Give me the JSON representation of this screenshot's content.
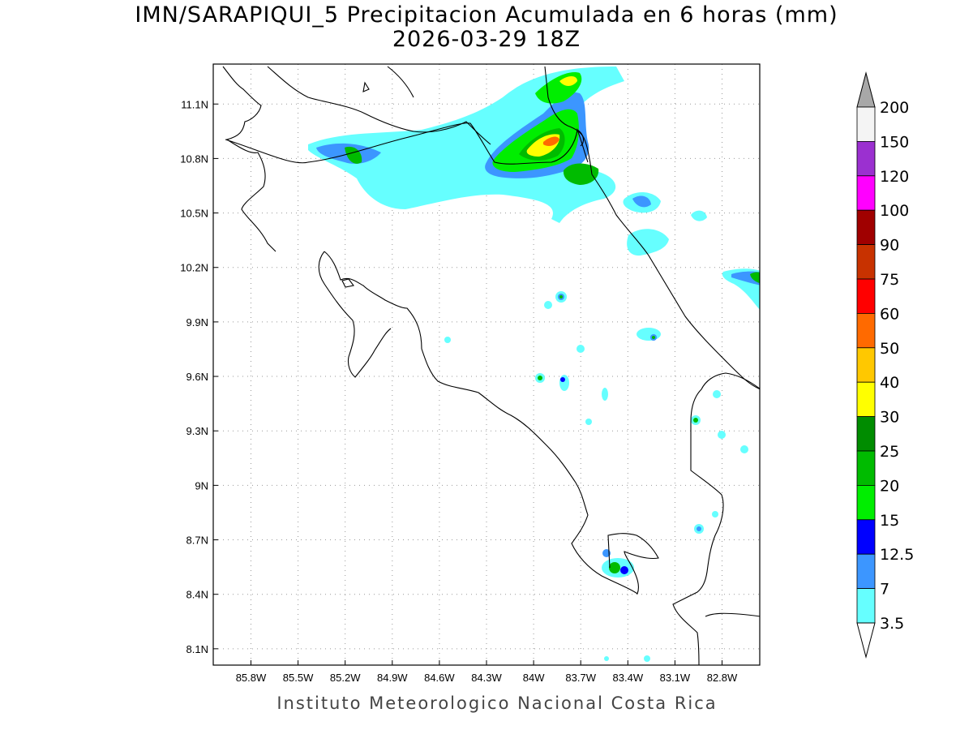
{
  "title": {
    "line1": "IMN/SARAPIQUI_5 Precipitacion Acumulada en 6 horas (mm)",
    "line2": "2026-03-29 18Z"
  },
  "footer": "Instituto Meteorologico Nacional Costa Rica",
  "map": {
    "lon_range": [
      -86.04,
      -82.56
    ],
    "lat_range": [
      8.01,
      11.32
    ],
    "lon_ticks": [
      "85.8W",
      "85.5W",
      "85.2W",
      "84.9W",
      "84.6W",
      "84.3W",
      "84W",
      "83.7W",
      "83.4W",
      "83.1W",
      "82.8W"
    ],
    "lon_tick_values": [
      -85.8,
      -85.5,
      -85.2,
      -84.9,
      -84.6,
      -84.3,
      -84.0,
      -83.7,
      -83.4,
      -83.1,
      -82.8
    ],
    "lat_ticks": [
      "11.1N",
      "10.8N",
      "10.5N",
      "10.2N",
      "9.9N",
      "9.6N",
      "9.3N",
      "9N",
      "8.7N",
      "8.4N",
      "8.1N"
    ],
    "lat_tick_values": [
      11.1,
      10.8,
      10.5,
      10.2,
      9.9,
      9.6,
      9.3,
      9.0,
      8.7,
      8.4,
      8.1
    ],
    "grid": "dotted"
  },
  "colorbar": {
    "levels": [
      "200",
      "150",
      "120",
      "100",
      "90",
      "75",
      "60",
      "50",
      "40",
      "30",
      "25",
      "20",
      "15",
      "12.5",
      "7",
      "3.5"
    ],
    "colors": [
      "#f4f4f4",
      "#9b30d0",
      "#ff00ff",
      "#a00000",
      "#c83200",
      "#ff0000",
      "#ff6a00",
      "#ffc800",
      "#ffff00",
      "#008c00",
      "#00bb00",
      "#00ee00",
      "#0000ff",
      "#3c96ff",
      "#66ffff"
    ],
    "over_color": "#a8a8a8"
  },
  "precip_cells": [
    {
      "lon": -83.95,
      "lat": 10.88,
      "value": 40
    },
    {
      "lon": -83.82,
      "lat": 10.95,
      "value": 25
    },
    {
      "lon": -83.72,
      "lat": 11.2,
      "value": 25
    },
    {
      "lon": -83.75,
      "lat": 11.05,
      "value": 20
    },
    {
      "lon": -83.72,
      "lat": 10.7,
      "value": 20
    },
    {
      "lon": -84.0,
      "lat": 10.72,
      "value": 15
    },
    {
      "lon": -85.1,
      "lat": 10.85,
      "value": 15
    },
    {
      "lon": -84.6,
      "lat": 10.7,
      "value": 3.5
    },
    {
      "lon": -83.3,
      "lat": 10.55,
      "value": 7
    },
    {
      "lon": -83.3,
      "lat": 10.3,
      "value": 3.5
    },
    {
      "lon": -82.7,
      "lat": 10.13,
      "value": 20
    },
    {
      "lon": -83.77,
      "lat": 10.03,
      "value": 20
    },
    {
      "lon": -83.2,
      "lat": 9.8,
      "value": 20
    },
    {
      "lon": -83.9,
      "lat": 9.57,
      "value": 20
    },
    {
      "lon": -83.75,
      "lat": 9.56,
      "value": 12.5
    },
    {
      "lon": -82.93,
      "lat": 9.34,
      "value": 20
    },
    {
      "lon": -83.45,
      "lat": 8.53,
      "value": 20
    },
    {
      "lon": -83.4,
      "lat": 8.52,
      "value": 15
    },
    {
      "lon": -83.45,
      "lat": 8.62,
      "value": 12.5
    },
    {
      "lon": -82.9,
      "lat": 8.74,
      "value": 7
    }
  ]
}
